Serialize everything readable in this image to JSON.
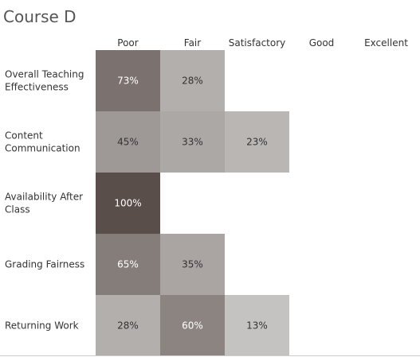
{
  "chart_data": {
    "type": "heatmap",
    "title": "Course D",
    "columns": [
      "Poor",
      "Fair",
      "Satisfactory",
      "Good",
      "Excellent"
    ],
    "rows": [
      {
        "label": [
          "Overall Teaching",
          "Effectiveness"
        ],
        "values": [
          73,
          28,
          null,
          null,
          null
        ],
        "display": [
          "73%",
          "28%",
          null,
          null,
          null
        ]
      },
      {
        "label": [
          "Content",
          "Communication"
        ],
        "values": [
          45,
          33,
          23,
          null,
          null
        ],
        "display": [
          "45%",
          "33%",
          "23%",
          null,
          null
        ]
      },
      {
        "label": [
          "Availability After",
          "Class"
        ],
        "values": [
          100,
          null,
          null,
          null,
          null
        ],
        "display": [
          "100%",
          null,
          null,
          null,
          null
        ]
      },
      {
        "label": [
          "Grading Fairness"
        ],
        "values": [
          65,
          35,
          null,
          null,
          null
        ],
        "display": [
          "65%",
          "35%",
          null,
          null,
          null
        ]
      },
      {
        "label": [
          "Returning Work"
        ],
        "values": [
          28,
          60,
          13,
          null,
          null
        ],
        "display": [
          "28%",
          "60%",
          "13%",
          null,
          null
        ]
      }
    ],
    "value_unit": "%",
    "color_scale": {
      "low": "#c5c3c1",
      "high": "#5a4e4b",
      "min": 13,
      "max": 100
    },
    "text_colors": {
      "dark_cell": "#ffffff",
      "light_cell": "#333333"
    },
    "grid": false
  }
}
